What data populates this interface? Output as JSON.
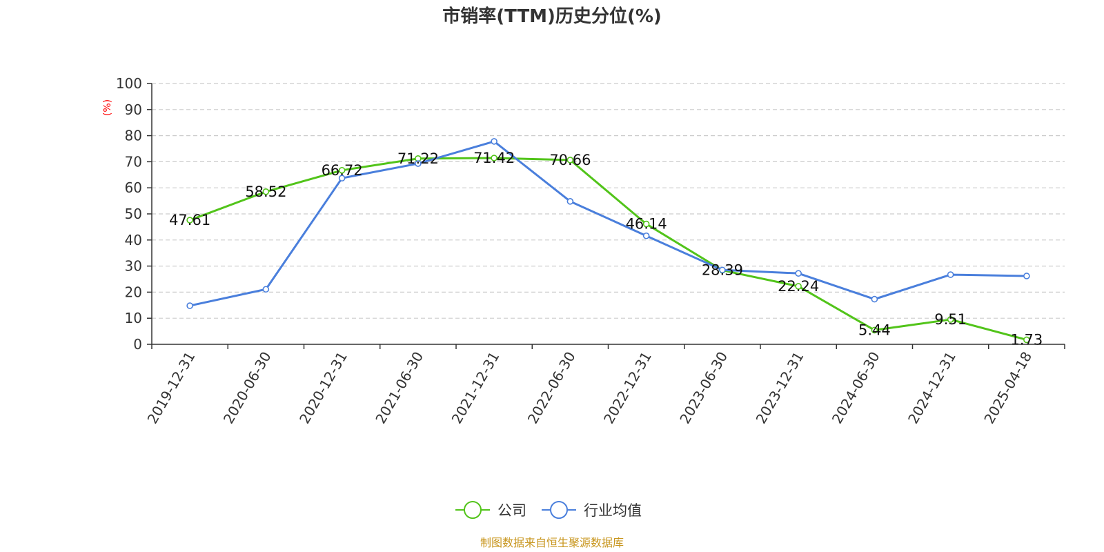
{
  "chart_data": {
    "type": "line",
    "title": "市销率(TTM)历史分位(%)",
    "ylabel": "(%)",
    "ylim": [
      0,
      100
    ],
    "yticks": [
      0,
      10,
      20,
      30,
      40,
      50,
      60,
      70,
      80,
      90,
      100
    ],
    "grid": true,
    "legend_position": "bottom-center",
    "categories": [
      "2019-12-31",
      "2020-06-30",
      "2020-12-31",
      "2021-06-30",
      "2021-12-31",
      "2022-06-30",
      "2022-12-31",
      "2023-06-30",
      "2023-12-31",
      "2024-06-30",
      "2024-12-31",
      "2025-04-18"
    ],
    "series": [
      {
        "name": "公司",
        "color": "#52c41a",
        "values": [
          47.61,
          58.52,
          66.72,
          71.22,
          71.42,
          70.66,
          46.14,
          28.39,
          22.24,
          5.44,
          9.51,
          1.73
        ],
        "labels": [
          "47.61",
          "58.52",
          "66.72",
          "71.22",
          "71.42",
          "70.66",
          "46.14",
          "28.39",
          "22.24",
          "5.44",
          "9.51",
          "1.73"
        ]
      },
      {
        "name": "行业均值",
        "color": "#4a7fdc",
        "values": [
          14.8,
          21.1,
          63.7,
          69.3,
          77.8,
          54.8,
          41.6,
          28.5,
          27.2,
          17.3,
          26.7,
          26.2
        ]
      }
    ]
  },
  "footer": {
    "source": "制图数据来自恒生聚源数据库"
  }
}
